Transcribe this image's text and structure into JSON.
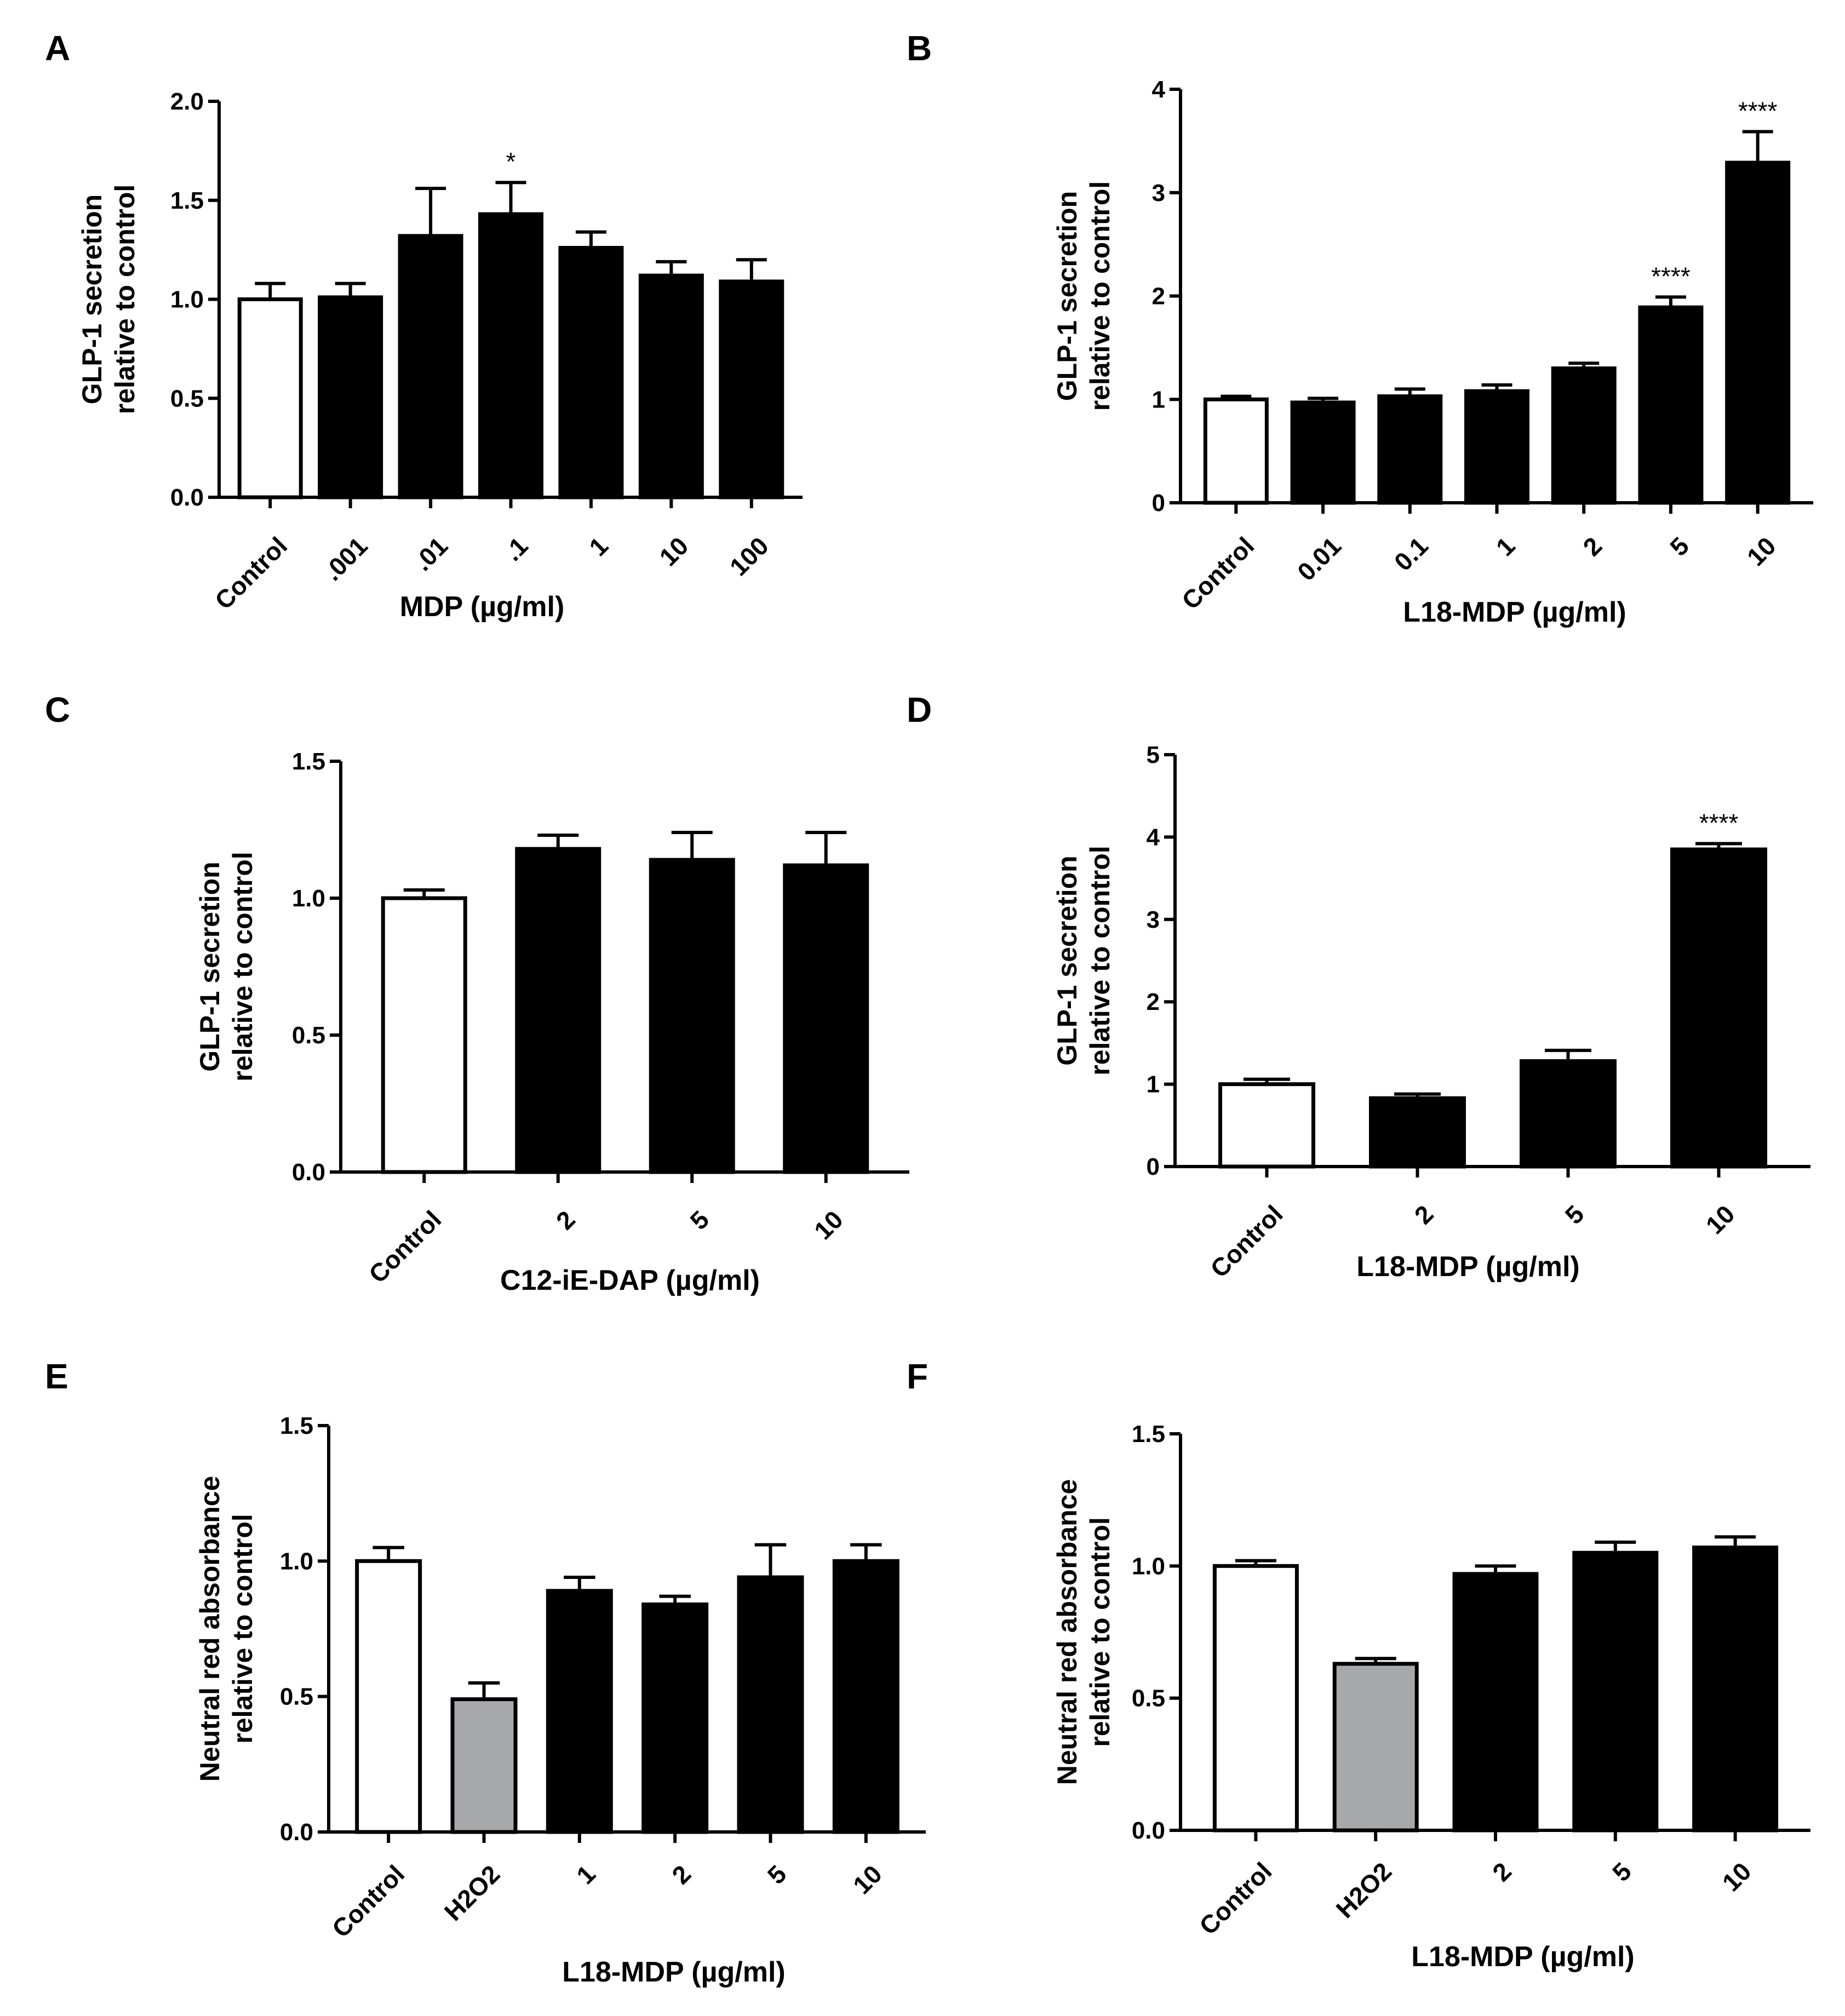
{
  "figure": {
    "background": "#ffffff",
    "bar_stroke": "#000000",
    "fill_colors": {
      "white": "#ffffff",
      "black": "#000000",
      "gray": "#a6a8ab"
    }
  },
  "chart_data": [
    {
      "panel": "A",
      "type": "bar",
      "ylabel_lines": [
        "GLP-1 secretion",
        "relative to control"
      ],
      "xlabel": "MDP (µg/ml)",
      "ylim": [
        0,
        2.0
      ],
      "yticks": [
        "0.0",
        "0.5",
        "1.0",
        "1.5",
        "2.0"
      ],
      "categories": [
        "Control",
        ".001",
        ".01",
        ".1",
        "1",
        "10",
        "100"
      ],
      "values": [
        1.0,
        1.01,
        1.32,
        1.43,
        1.26,
        1.12,
        1.09
      ],
      "errors": [
        0.08,
        0.07,
        0.24,
        0.16,
        0.08,
        0.07,
        0.11
      ],
      "fills": [
        "white",
        "black",
        "black",
        "black",
        "black",
        "black",
        "black"
      ],
      "annotations": [
        "",
        "",
        "",
        "*",
        "",
        "",
        ""
      ]
    },
    {
      "panel": "B",
      "type": "bar",
      "ylabel_lines": [
        "GLP-1 secretion",
        "relative to control"
      ],
      "xlabel": "L18-MDP (µg/ml)",
      "ylim": [
        0,
        4
      ],
      "yticks": [
        "0",
        "1",
        "2",
        "3",
        "4"
      ],
      "categories": [
        "Control",
        "0.01",
        "0.1",
        "1",
        "2",
        "5",
        "10"
      ],
      "values": [
        1.0,
        0.97,
        1.03,
        1.08,
        1.3,
        1.89,
        3.29
      ],
      "errors": [
        0.03,
        0.04,
        0.07,
        0.06,
        0.05,
        0.1,
        0.3
      ],
      "fills": [
        "white",
        "black",
        "black",
        "black",
        "black",
        "black",
        "black"
      ],
      "annotations": [
        "",
        "",
        "",
        "",
        "",
        "****",
        "****"
      ]
    },
    {
      "panel": "C",
      "type": "bar",
      "ylabel_lines": [
        "GLP-1 secretion",
        "relative to control"
      ],
      "xlabel": "C12-iE-DAP (µg/ml)",
      "ylim": [
        0,
        1.5
      ],
      "yticks": [
        "0.0",
        "0.5",
        "1.0",
        "1.5"
      ],
      "categories": [
        "Control",
        "2",
        "5",
        "10"
      ],
      "values": [
        1.0,
        1.18,
        1.14,
        1.12
      ],
      "errors": [
        0.03,
        0.05,
        0.1,
        0.12
      ],
      "fills": [
        "white",
        "black",
        "black",
        "black"
      ],
      "annotations": [
        "",
        "",
        "",
        ""
      ]
    },
    {
      "panel": "D",
      "type": "bar",
      "ylabel_lines": [
        "GLP-1 secretion",
        "relative to control"
      ],
      "xlabel": "L18-MDP (µg/ml)",
      "ylim": [
        0,
        5
      ],
      "yticks": [
        "0",
        "1",
        "2",
        "3",
        "4",
        "5"
      ],
      "categories": [
        "Control",
        "2",
        "5",
        "10"
      ],
      "values": [
        1.0,
        0.83,
        1.28,
        3.85
      ],
      "errors": [
        0.06,
        0.05,
        0.13,
        0.07
      ],
      "fills": [
        "white",
        "black",
        "black",
        "black"
      ],
      "annotations": [
        "",
        "",
        "",
        "****"
      ]
    },
    {
      "panel": "E",
      "type": "bar",
      "ylabel_lines": [
        "Neutral red absorbance",
        "relative to control"
      ],
      "xlabel": "L18-MDP (µg/ml)",
      "ylim": [
        0,
        1.5
      ],
      "yticks": [
        "0.0",
        "0.5",
        "1.0",
        "1.5"
      ],
      "categories": [
        "Control",
        "H2O2",
        "1",
        "2",
        "5",
        "10"
      ],
      "values": [
        1.0,
        0.49,
        0.89,
        0.84,
        0.94,
        1.0
      ],
      "errors": [
        0.05,
        0.06,
        0.05,
        0.03,
        0.12,
        0.06
      ],
      "fills": [
        "white",
        "gray",
        "black",
        "black",
        "black",
        "black"
      ],
      "annotations": [
        "",
        "",
        "",
        "",
        "",
        ""
      ]
    },
    {
      "panel": "F",
      "type": "bar",
      "ylabel_lines": [
        "Neutral red absorbance",
        "relative to control"
      ],
      "xlabel": "L18-MDP (µg/ml)",
      "ylim": [
        0,
        1.5
      ],
      "yticks": [
        "0.0",
        "0.5",
        "1.0",
        "1.5"
      ],
      "categories": [
        "Control",
        "H2O2",
        "2",
        "5",
        "10"
      ],
      "values": [
        1.0,
        0.63,
        0.97,
        1.05,
        1.07
      ],
      "errors": [
        0.02,
        0.02,
        0.03,
        0.04,
        0.04
      ],
      "fills": [
        "white",
        "gray",
        "black",
        "black",
        "black"
      ],
      "annotations": [
        "",
        "",
        "",
        "",
        ""
      ]
    }
  ]
}
